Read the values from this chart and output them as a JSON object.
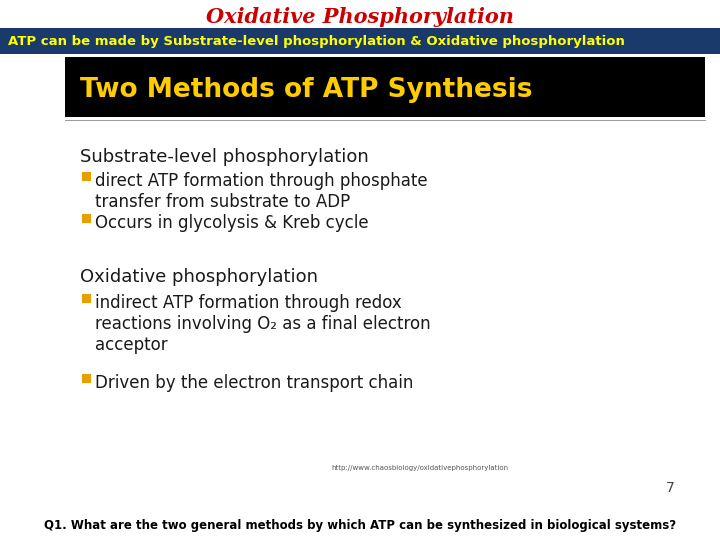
{
  "title": "Oxidative Phosphorylation",
  "title_color": "#cc0000",
  "subtitle": "ATP can be made by Substrate-level phosphorylation & Oxidative phosphorylation",
  "subtitle_bg": "#1a3a6b",
  "subtitle_color": "#ffff00",
  "banner_text": "Two Methods of ATP Synthesis",
  "banner_bg": "#000000",
  "banner_color": "#ffcc00",
  "bg_color": "#ffffff",
  "section1_header": "Substrate-level phosphorylation",
  "section1_bullet1": "direct ATP formation through phosphate\ntransfer from substrate to ADP",
  "section1_bullet2": "Occurs in glycolysis & Kreb cycle",
  "section2_header": "Oxidative phosphorylation",
  "section2_bullet1": "indirect ATP formation through redox\nreactions involving O₂ as a final electron\nacceptor",
  "section2_bullet2": "Driven by the electron transport chain",
  "bullet_color": "#e8a000",
  "header_color": "#1a1a1a",
  "body_color": "#1a1a1a",
  "url_text": "http://www.chaosbiology/oxidativephosphorylation",
  "page_number": "7",
  "footer_text": "Q1. What are the two general methods by which ATP can be synthesized in biological systems?"
}
